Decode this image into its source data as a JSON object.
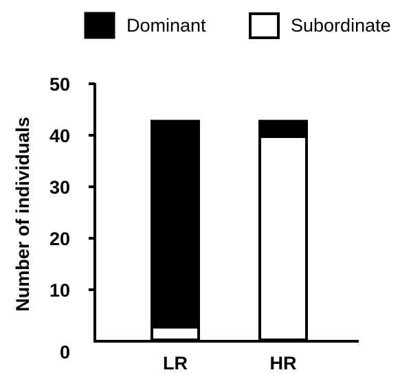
{
  "chart_data": {
    "type": "bar",
    "stacked": true,
    "categories": [
      "LR",
      "HR"
    ],
    "series": [
      {
        "name": "Subordinate",
        "values": [
          3,
          40
        ],
        "color": "#ffffff"
      },
      {
        "name": "Dominant",
        "values": [
          40,
          3
        ],
        "color": "#000000"
      }
    ],
    "xlabel": "",
    "ylabel": "Number of individuals",
    "ylim": [
      0,
      50
    ],
    "yticks": [
      0,
      10,
      20,
      30,
      40,
      50
    ],
    "legend": "top",
    "grid": false
  }
}
